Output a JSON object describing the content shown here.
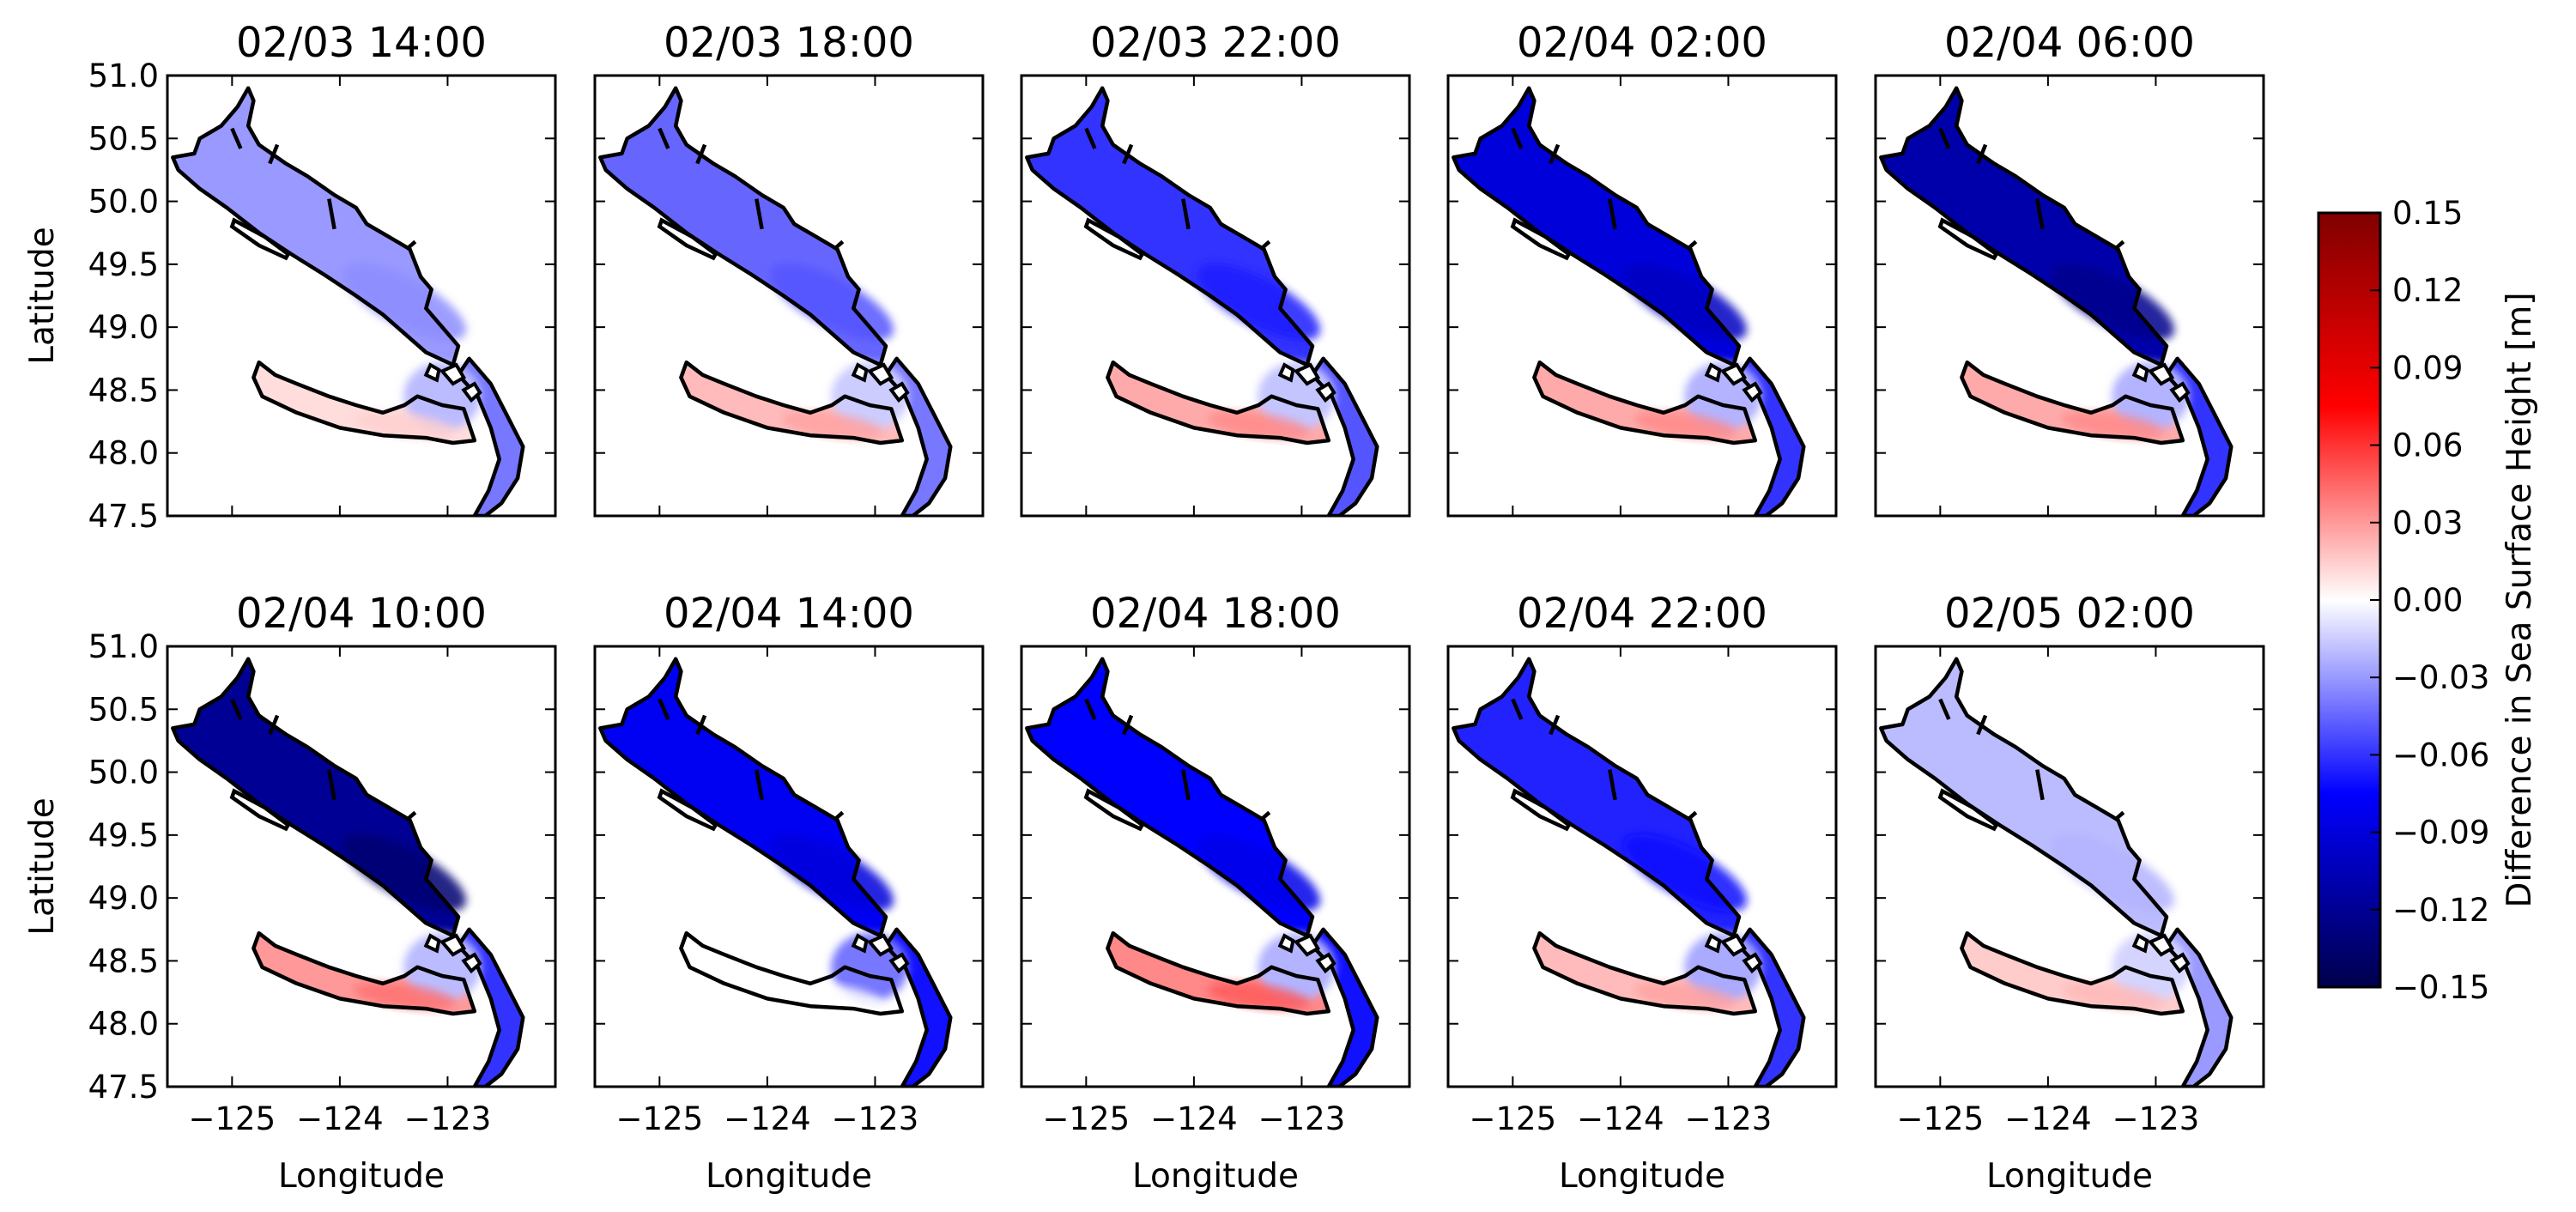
{
  "chart_data": {
    "type": "heatmap",
    "layout": "small-multiples",
    "rows": 2,
    "cols": 5,
    "xlabel": "Longitude",
    "ylabel": "Latitude",
    "xlim": [
      -125.6,
      -122.0
    ],
    "ylim": [
      47.5,
      51.0
    ],
    "xticks": [
      -125,
      -124,
      -123
    ],
    "xtick_labels": [
      "−125",
      "−124",
      "−123"
    ],
    "yticks": [
      47.5,
      48.0,
      48.5,
      49.0,
      49.5,
      50.0,
      50.5,
      51.0
    ],
    "ytick_labels": [
      "47.5",
      "48.0",
      "48.5",
      "49.0",
      "49.5",
      "50.0",
      "50.5",
      "51.0"
    ],
    "panels": [
      {
        "title": "02/03 14:00",
        "strait_of_georgia": -0.03,
        "juan_de_fuca": 0.01,
        "puget_sound": -0.04
      },
      {
        "title": "02/03 18:00",
        "strait_of_georgia": -0.045,
        "juan_de_fuca": 0.02,
        "puget_sound": -0.04
      },
      {
        "title": "02/03 22:00",
        "strait_of_georgia": -0.06,
        "juan_de_fuca": 0.025,
        "puget_sound": -0.05
      },
      {
        "title": "02/04 02:00",
        "strait_of_georgia": -0.09,
        "juan_de_fuca": 0.025,
        "puget_sound": -0.06
      },
      {
        "title": "02/04 06:00",
        "strait_of_georgia": -0.11,
        "juan_de_fuca": 0.025,
        "puget_sound": -0.06
      },
      {
        "title": "02/04 10:00",
        "strait_of_georgia": -0.12,
        "juan_de_fuca": 0.03,
        "puget_sound": -0.06
      },
      {
        "title": "02/04 14:00",
        "strait_of_georgia": -0.08,
        "juan_de_fuca": 0.0,
        "puget_sound": -0.07
      },
      {
        "title": "02/04 18:00",
        "strait_of_georgia": -0.075,
        "juan_de_fuca": 0.035,
        "puget_sound": -0.07
      },
      {
        "title": "02/04 22:00",
        "strait_of_georgia": -0.065,
        "juan_de_fuca": 0.02,
        "puget_sound": -0.06
      },
      {
        "title": "02/05 02:00",
        "strait_of_georgia": -0.02,
        "juan_de_fuca": 0.015,
        "puget_sound": -0.03
      }
    ],
    "colorbar": {
      "label": "Difference in Sea Surface Height [m]",
      "vmin": -0.15,
      "vmax": 0.15,
      "colormap": "seismic",
      "ticks": [
        0.15,
        0.12,
        0.09,
        0.06,
        0.03,
        0.0,
        -0.03,
        -0.06,
        -0.09,
        -0.12,
        -0.15
      ],
      "tick_labels": [
        "0.15",
        "0.12",
        "0.09",
        "0.06",
        "0.03",
        "0.00",
        "−0.03",
        "−0.06",
        "−0.09",
        "−0.12",
        "−0.15"
      ]
    },
    "colors": {
      "coast": "#000000",
      "colormap_stops": [
        "#00004c",
        "#0000ff",
        "#ffffff",
        "#ff0000",
        "#800000"
      ]
    }
  }
}
